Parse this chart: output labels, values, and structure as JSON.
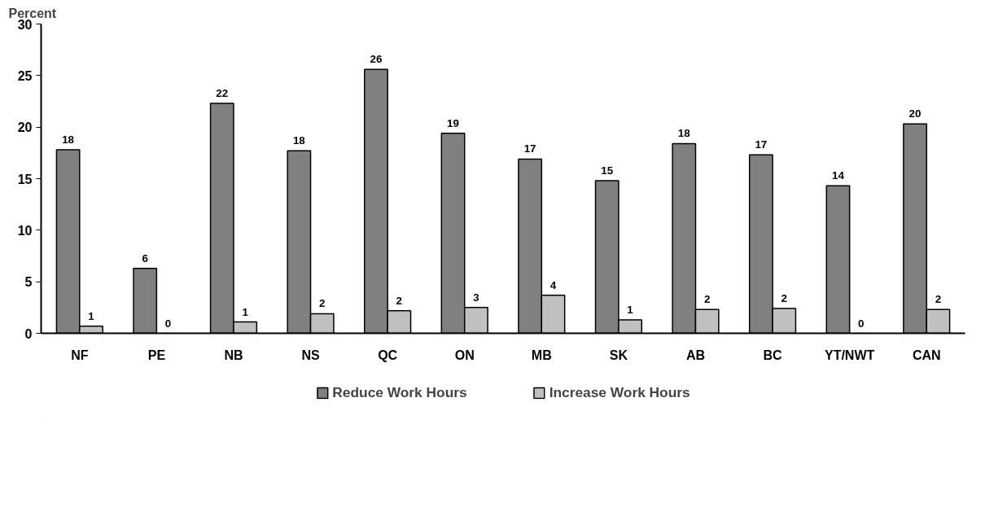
{
  "chart_data": {
    "type": "bar",
    "ylabel": "Percent",
    "categories": [
      "NF",
      "PE",
      "NB",
      "NS",
      "QC",
      "ON",
      "MB",
      "SK",
      "AB",
      "BC",
      "YT/NWT",
      "CAN"
    ],
    "series": [
      {
        "name": "Reduce Work Hours",
        "color": "#808080",
        "values": [
          17.8,
          6.3,
          22.3,
          17.7,
          25.6,
          19.4,
          16.9,
          14.8,
          18.4,
          17.3,
          14.3,
          20.3
        ],
        "value_labels": [
          "18",
          "6",
          "22",
          "18",
          "26",
          "19",
          "17",
          "15",
          "18",
          "17",
          "14",
          "20"
        ]
      },
      {
        "name": "Increase Work Hours",
        "color": "#c0c0c0",
        "values": [
          0.7,
          0,
          1.1,
          1.9,
          2.2,
          2.5,
          3.7,
          1.3,
          2.3,
          2.4,
          0,
          2.3
        ],
        "value_labels": [
          "1",
          "0",
          "1",
          "2",
          "2",
          "3",
          "4",
          "1",
          "2",
          "2",
          "0",
          "2"
        ]
      }
    ],
    "ylim": [
      0,
      30
    ],
    "yticks": [
      0,
      5,
      10,
      15,
      20,
      25,
      30
    ],
    "grid": false,
    "legend": "bottom"
  }
}
